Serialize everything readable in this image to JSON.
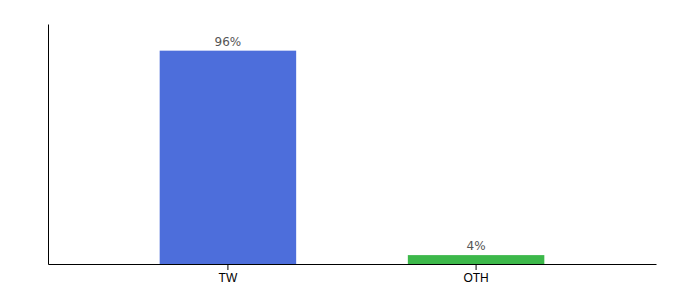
{
  "chart_data": {
    "type": "bar",
    "categories": [
      "TW",
      "OTH"
    ],
    "values": [
      96,
      4
    ],
    "value_labels": [
      "96%",
      "4%"
    ],
    "colors": [
      "#4d6edb",
      "#3cb84a"
    ],
    "ylim": [
      0,
      108
    ],
    "data_labels": true,
    "tick_labels": "x",
    "grid": false
  }
}
